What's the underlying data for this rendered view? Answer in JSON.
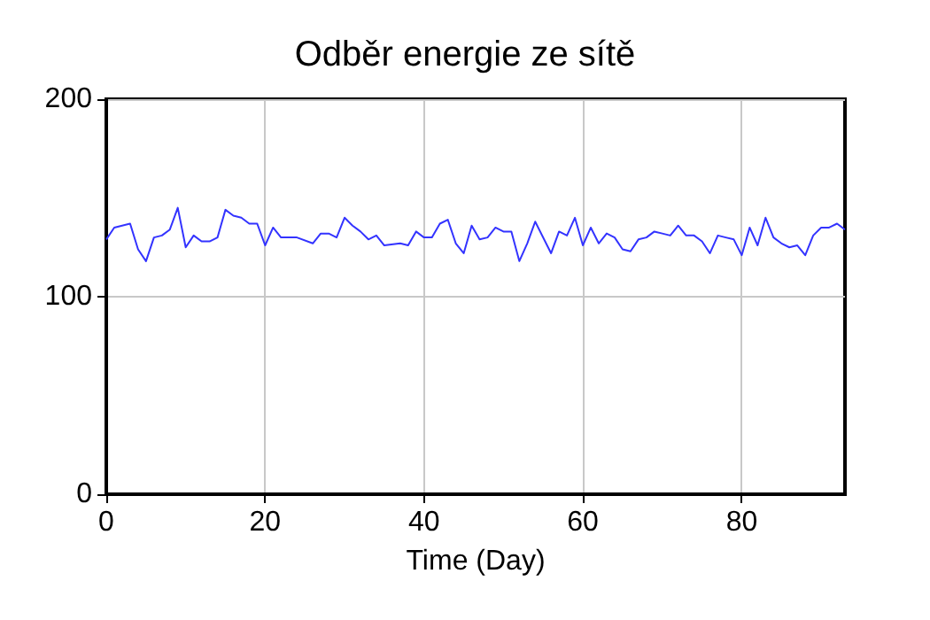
{
  "chart_data": {
    "type": "line",
    "title": "Odběr energie ze sítě",
    "xlabel": "Time (Day)",
    "x": [
      0,
      1,
      3,
      4,
      5,
      6,
      7,
      8,
      9,
      10,
      11,
      12,
      13,
      14,
      15,
      16,
      17,
      18,
      19,
      20,
      21,
      22,
      23,
      24,
      26,
      27,
      28,
      29,
      30,
      31,
      32,
      33,
      34,
      35,
      37,
      38,
      39,
      40,
      41,
      42,
      43,
      44,
      45,
      46,
      47,
      48,
      49,
      50,
      51,
      52,
      53,
      54,
      56,
      57,
      58,
      59,
      60,
      61,
      62,
      63,
      64,
      65,
      66,
      67,
      68,
      69,
      70,
      71,
      72,
      73,
      74,
      75,
      76,
      77,
      78,
      79,
      80,
      81,
      82,
      83,
      84,
      85,
      86,
      87,
      88,
      89,
      90,
      91,
      92,
      93
    ],
    "series": [
      {
        "color": "#3333ff",
        "values": [
          129,
          135,
          137,
          124,
          118,
          130,
          131,
          134,
          145,
          125,
          131,
          128,
          128,
          130,
          144,
          141,
          140,
          137,
          137,
          126,
          135,
          130,
          130,
          130,
          127,
          132,
          132,
          130,
          140,
          136,
          133,
          129,
          131,
          126,
          127,
          126,
          133,
          130,
          130,
          137,
          139,
          127,
          122,
          136,
          129,
          130,
          135,
          133,
          133,
          118,
          127,
          138,
          122,
          133,
          131,
          140,
          126,
          135,
          127,
          132,
          130,
          124,
          123,
          129,
          130,
          133,
          132,
          131,
          136,
          131,
          131,
          128,
          122,
          131,
          130,
          129,
          121,
          135,
          126,
          140,
          130,
          127,
          125,
          126,
          121,
          131,
          135,
          135,
          137,
          134
        ]
      }
    ],
    "xlim": [
      0,
      93
    ],
    "xticks": [
      0,
      20,
      40,
      60,
      80
    ],
    "ylim": [
      0,
      200
    ],
    "yticks": [
      0,
      100,
      200
    ],
    "grid": true,
    "marker": "none",
    "line_style": "solid"
  }
}
